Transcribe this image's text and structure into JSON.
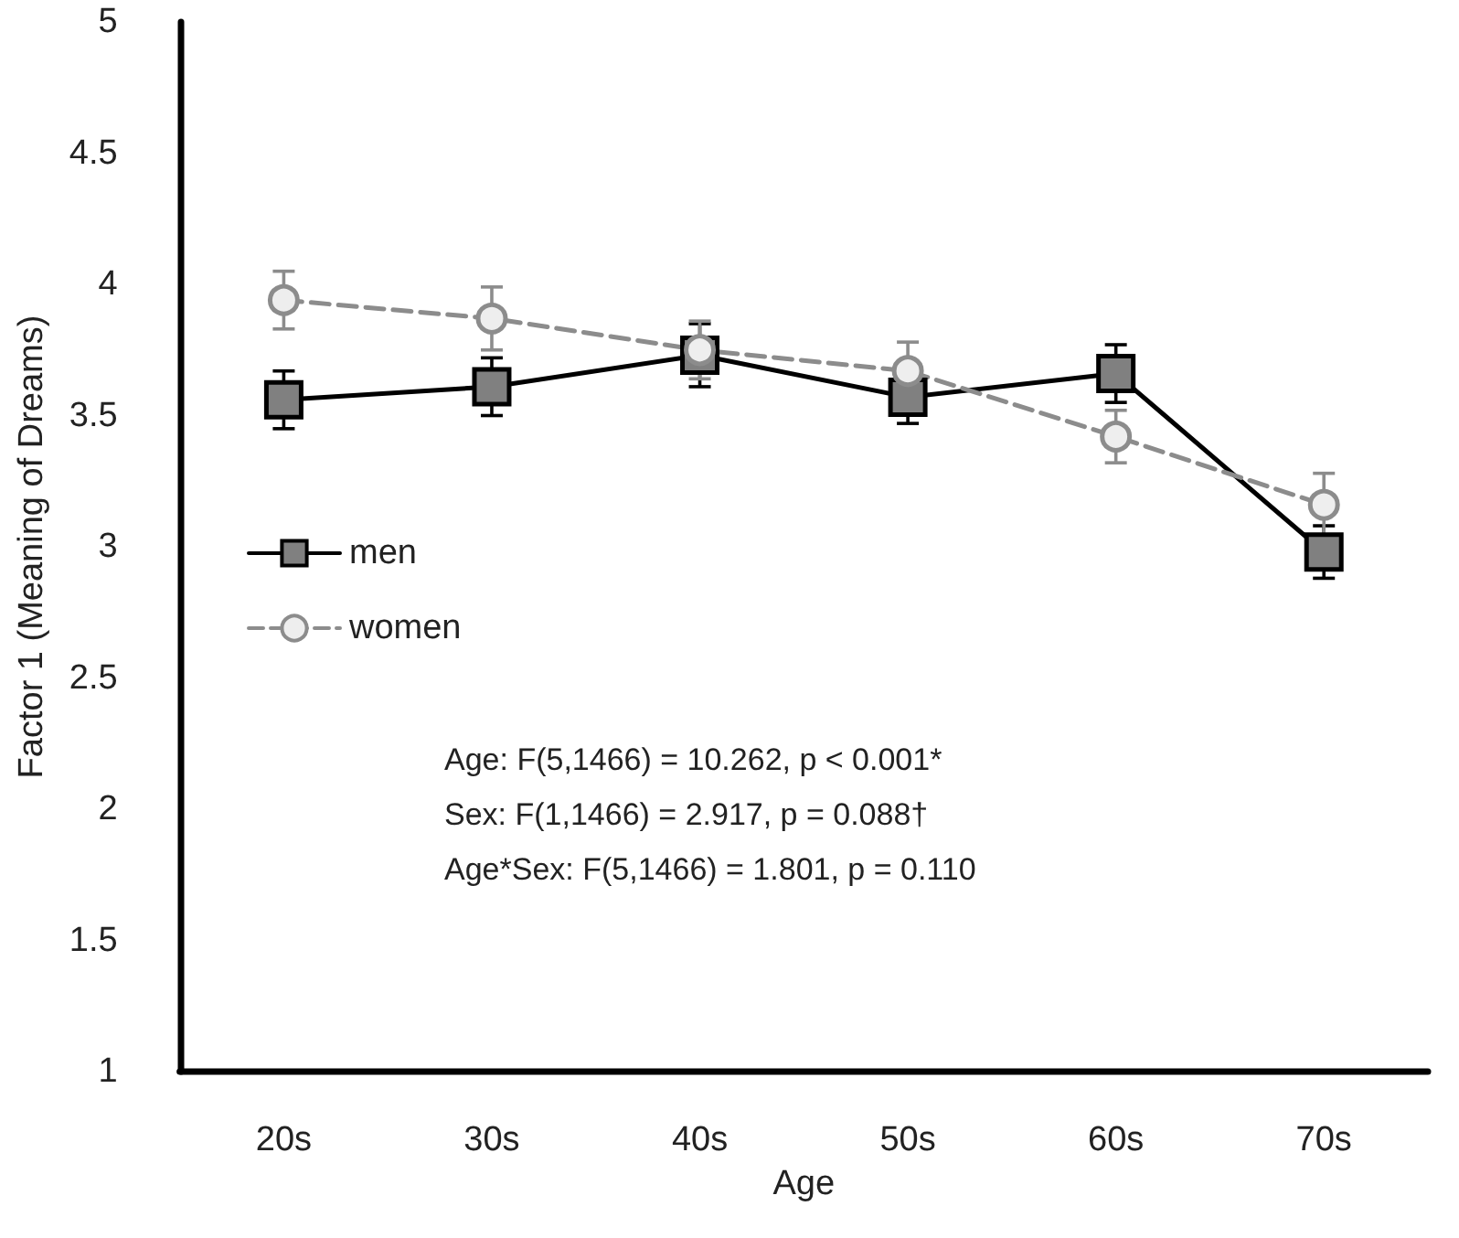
{
  "chart_data": {
    "type": "line",
    "xlabel": "Age",
    "ylabel": "Factor 1 (Meaning of Dreams)",
    "categories": [
      "20s",
      "30s",
      "40s",
      "50s",
      "60s",
      "70s"
    ],
    "series": [
      {
        "name": "men",
        "color": "#000000",
        "marker": "square",
        "line_style": "solid",
        "values": [
          3.56,
          3.61,
          3.73,
          3.57,
          3.66,
          2.98
        ],
        "errors": [
          0.11,
          0.11,
          0.12,
          0.1,
          0.11,
          0.1
        ]
      },
      {
        "name": "women",
        "color": "#8c8c8c",
        "marker": "circle",
        "line_style": "dashed",
        "values": [
          3.94,
          3.87,
          3.75,
          3.67,
          3.42,
          3.16
        ],
        "errors": [
          0.11,
          0.12,
          0.11,
          0.11,
          0.1,
          0.12
        ]
      }
    ],
    "ylim": [
      1,
      5
    ],
    "yticks": [
      1,
      1.5,
      2,
      2.5,
      3,
      3.5,
      4,
      4.5,
      5
    ],
    "grid": false,
    "legend": "left",
    "annotations": [
      "Age: F(5,1466) = 10.262, p < 0.001*",
      "Sex: F(1,1466) = 2.917, p = 0.088†",
      "Age*Sex: F(5,1466) = 1.801, p = 0.110"
    ]
  }
}
